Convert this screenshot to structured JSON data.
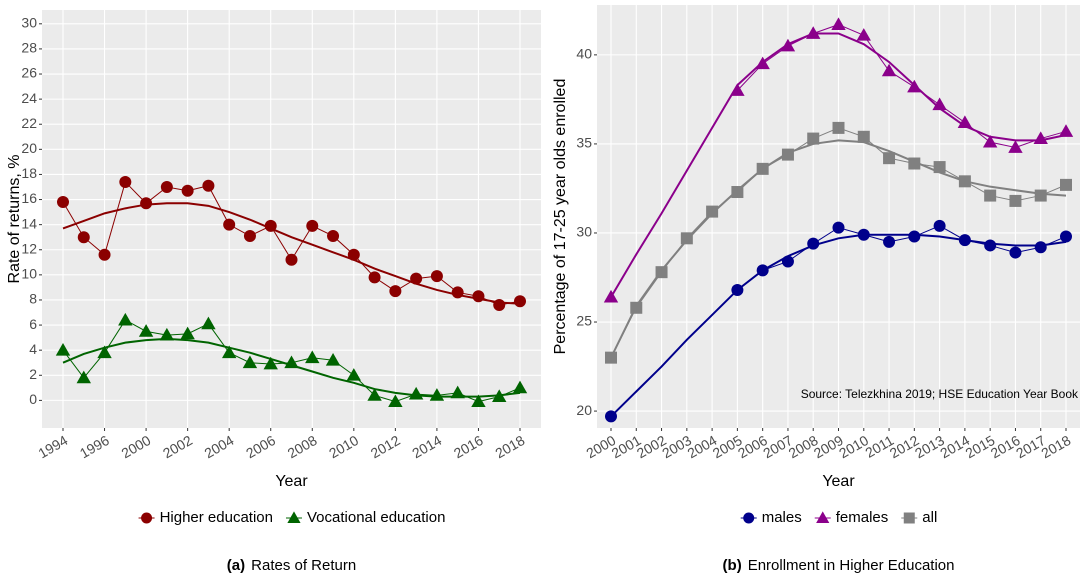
{
  "chart_data": [
    {
      "type": "line",
      "caption_label": "(a)",
      "caption": "Rates of Return",
      "xlabel": "Year",
      "ylabel": "Rate of returns, %",
      "categories": [
        "1994",
        null,
        "1996",
        null,
        "2000",
        null,
        "2002",
        null,
        "2004",
        null,
        "2006",
        null,
        "2008",
        null,
        "2010",
        null,
        "2012",
        null,
        "2014",
        null,
        "2016",
        null,
        "2018"
      ],
      "series": [
        {
          "name": "Higher education",
          "color": "#8b0000",
          "marker": "circle",
          "values": [
            15.8,
            13.0,
            11.6,
            17.4,
            15.7,
            17.0,
            16.7,
            17.1,
            14.0,
            13.1,
            13.9,
            11.2,
            13.9,
            13.1,
            11.6,
            9.8,
            8.7,
            9.7,
            9.9,
            8.6,
            8.3,
            7.6,
            7.9
          ],
          "trend": [
            13.7,
            14.3,
            14.9,
            15.3,
            15.6,
            15.7,
            15.7,
            15.5,
            15.0,
            14.4,
            13.7,
            13.0,
            12.4,
            11.8,
            11.2,
            10.5,
            9.9,
            9.3,
            8.8,
            8.4,
            8.1,
            7.8,
            7.7
          ]
        },
        {
          "name": "Vocational education",
          "color": "#006400",
          "marker": "triangle",
          "values": [
            4.0,
            1.8,
            3.8,
            6.4,
            5.5,
            5.2,
            5.3,
            6.1,
            3.8,
            3.0,
            2.9,
            3.0,
            3.4,
            3.2,
            2.0,
            0.4,
            -0.1,
            0.5,
            0.4,
            0.6,
            -0.1,
            0.3,
            1.0
          ],
          "trend": [
            3.0,
            3.7,
            4.2,
            4.6,
            4.8,
            4.9,
            4.8,
            4.6,
            4.2,
            3.8,
            3.3,
            2.8,
            2.3,
            1.8,
            1.4,
            0.9,
            0.6,
            0.4,
            0.3,
            0.3,
            0.3,
            0.4,
            0.6
          ]
        }
      ],
      "ylim": [
        -2.2,
        31.1
      ],
      "yticks": [
        0,
        2,
        4,
        6,
        8,
        10,
        12,
        14,
        16,
        18,
        20,
        22,
        24,
        26,
        28,
        30
      ],
      "grid": true,
      "legend": "bottom"
    },
    {
      "type": "line",
      "caption_label": "(b)",
      "caption": "Enrollment in Higher Education",
      "xlabel": "Year",
      "ylabel": "Percentage of 17-25 year olds enrolled",
      "annotation": "Source: Telezkhina 2019; HSE Education Year Book",
      "categories": [
        "2000",
        "2001",
        "2002",
        "2003",
        "2004",
        "2005",
        "2006",
        "2007",
        "2008",
        "2009",
        "2010",
        "2011",
        "2012",
        "2013",
        "2014",
        "2015",
        "2016",
        "2017",
        "2018"
      ],
      "series": [
        {
          "name": "males",
          "color": "#00008b",
          "marker": "circle",
          "values": [
            19.7,
            null,
            null,
            null,
            null,
            26.8,
            27.9,
            28.4,
            29.4,
            30.3,
            29.9,
            29.5,
            29.8,
            30.4,
            29.6,
            29.3,
            28.9,
            29.2,
            29.8
          ],
          "trend": [
            19.7,
            21.1,
            22.5,
            24.0,
            25.4,
            26.8,
            27.9,
            28.7,
            29.3,
            29.7,
            29.9,
            29.9,
            29.9,
            29.8,
            29.6,
            29.4,
            29.3,
            29.3,
            29.5
          ]
        },
        {
          "name": "females",
          "color": "#8b008b",
          "marker": "triangle",
          "values": [
            26.4,
            null,
            null,
            null,
            null,
            38.0,
            39.5,
            40.5,
            41.2,
            41.7,
            41.1,
            39.1,
            38.2,
            37.2,
            36.2,
            35.1,
            34.8,
            35.3,
            35.7
          ],
          "trend": [
            26.4,
            28.8,
            31.1,
            33.5,
            35.9,
            38.3,
            39.6,
            40.6,
            41.2,
            41.2,
            40.6,
            39.6,
            38.3,
            37.0,
            36.0,
            35.4,
            35.2,
            35.2,
            35.5
          ]
        },
        {
          "name": "all",
          "color": "#808080",
          "marker": "square",
          "values": [
            23.0,
            25.8,
            27.8,
            29.7,
            31.2,
            32.3,
            33.6,
            34.4,
            35.3,
            35.9,
            35.4,
            34.2,
            33.9,
            33.7,
            32.9,
            32.1,
            31.8,
            32.1,
            32.7
          ],
          "trend": [
            23.0,
            25.9,
            27.9,
            29.6,
            31.1,
            32.4,
            33.6,
            34.5,
            35.0,
            35.2,
            35.1,
            34.6,
            34.0,
            33.4,
            32.9,
            32.6,
            32.4,
            32.2,
            32.1
          ]
        }
      ],
      "ylim": [
        19.05,
        42.8
      ],
      "yticks": [
        20,
        25,
        30,
        35,
        40
      ],
      "grid": true,
      "legend": "bottom"
    }
  ]
}
